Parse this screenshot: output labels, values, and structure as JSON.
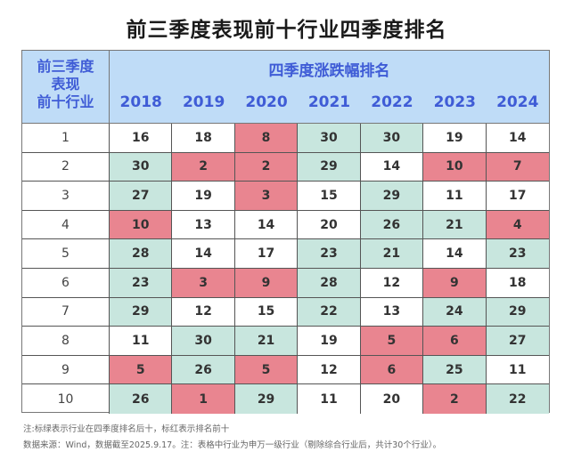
{
  "title": "前三季度表现前十行业四季度排名",
  "header": {
    "first_col_lines": [
      "前三季度",
      "表现",
      "前十行业"
    ],
    "group_label": "四季度涨跌幅排名"
  },
  "colors": {
    "header_bg": "#bfdcf7",
    "header_text": "#3f5cd6",
    "top10_red": "#e98590",
    "bottom10_green": "#c8e6de",
    "neutral": "#ffffff"
  },
  "chart_data": {
    "type": "table",
    "title": "前三季度表现前十行业四季度排名",
    "row_header": "前三季度表现前十行业",
    "column_group": "四季度涨跌幅排名",
    "columns": [
      "2018",
      "2019",
      "2020",
      "2021",
      "2022",
      "2023",
      "2024"
    ],
    "rows": [
      {
        "rank": "1",
        "values": [
          16,
          18,
          8,
          30,
          30,
          19,
          14
        ]
      },
      {
        "rank": "2",
        "values": [
          30,
          2,
          2,
          29,
          14,
          10,
          7
        ]
      },
      {
        "rank": "3",
        "values": [
          27,
          19,
          3,
          15,
          29,
          11,
          17
        ]
      },
      {
        "rank": "4",
        "values": [
          10,
          13,
          14,
          20,
          26,
          21,
          4
        ]
      },
      {
        "rank": "5",
        "values": [
          28,
          14,
          17,
          23,
          21,
          14,
          23
        ]
      },
      {
        "rank": "6",
        "values": [
          23,
          3,
          9,
          28,
          12,
          9,
          18
        ]
      },
      {
        "rank": "7",
        "values": [
          29,
          12,
          15,
          22,
          13,
          24,
          29
        ]
      },
      {
        "rank": "8",
        "values": [
          11,
          30,
          21,
          19,
          5,
          6,
          27
        ]
      },
      {
        "rank": "9",
        "values": [
          5,
          26,
          5,
          12,
          6,
          25,
          11
        ]
      },
      {
        "rank": "10",
        "values": [
          26,
          1,
          29,
          11,
          20,
          2,
          22
        ]
      }
    ],
    "highlight_rule": {
      "red_if_rank_at_most": 10,
      "green_if_rank_at_least": 21
    }
  },
  "notes": [
    "注:标绿表示行业在四季度排名后十，标红表示排名前十",
    "数据来源：Wind，数据截至2025.9.17。注：表格中行业为申万一级行业（剔除综合行业后，共计30个行业）。"
  ]
}
